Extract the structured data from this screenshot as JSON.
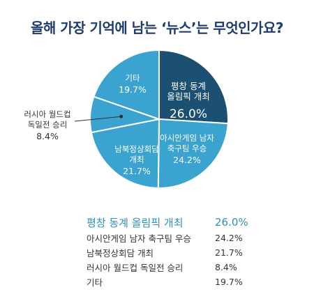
{
  "chart_data": {
    "type": "pie",
    "title": "올해 가장 기억에 남는 ‘뉴스’는 무엇인가요?",
    "slices": [
      {
        "label_lines": [
          "평창 동계",
          "올림픽 개최"
        ],
        "legend_label": "평창 동계 올림픽 개최",
        "value": 26.0,
        "value_label": "26.0%",
        "color": "#1b5072"
      },
      {
        "label_lines": [
          "아시안게임 남자",
          "축구팀 우승"
        ],
        "legend_label": "아시안게임 남자 축구팀 우승",
        "value": 24.2,
        "value_label": "24.2%",
        "color": "#3aa3cf"
      },
      {
        "label_lines": [
          "남북정상회담",
          "개최"
        ],
        "legend_label": "남북정상회담 개최",
        "value": 21.7,
        "value_label": "21.7%",
        "color": "#3aa3cf"
      },
      {
        "label_lines": [
          "러시아 월드컵",
          "독일전 승리"
        ],
        "legend_label": "러시아 월드컵 독일전 승리",
        "value": 8.4,
        "value_label": "8.4%",
        "color": "#3aa3cf"
      },
      {
        "label_lines": [
          "기타"
        ],
        "legend_label": "기타",
        "value": 19.7,
        "value_label": "19.7%",
        "color": "#3aa3cf"
      }
    ],
    "highlight_color": "#2f8fc0",
    "legend_placement": "bottom"
  }
}
